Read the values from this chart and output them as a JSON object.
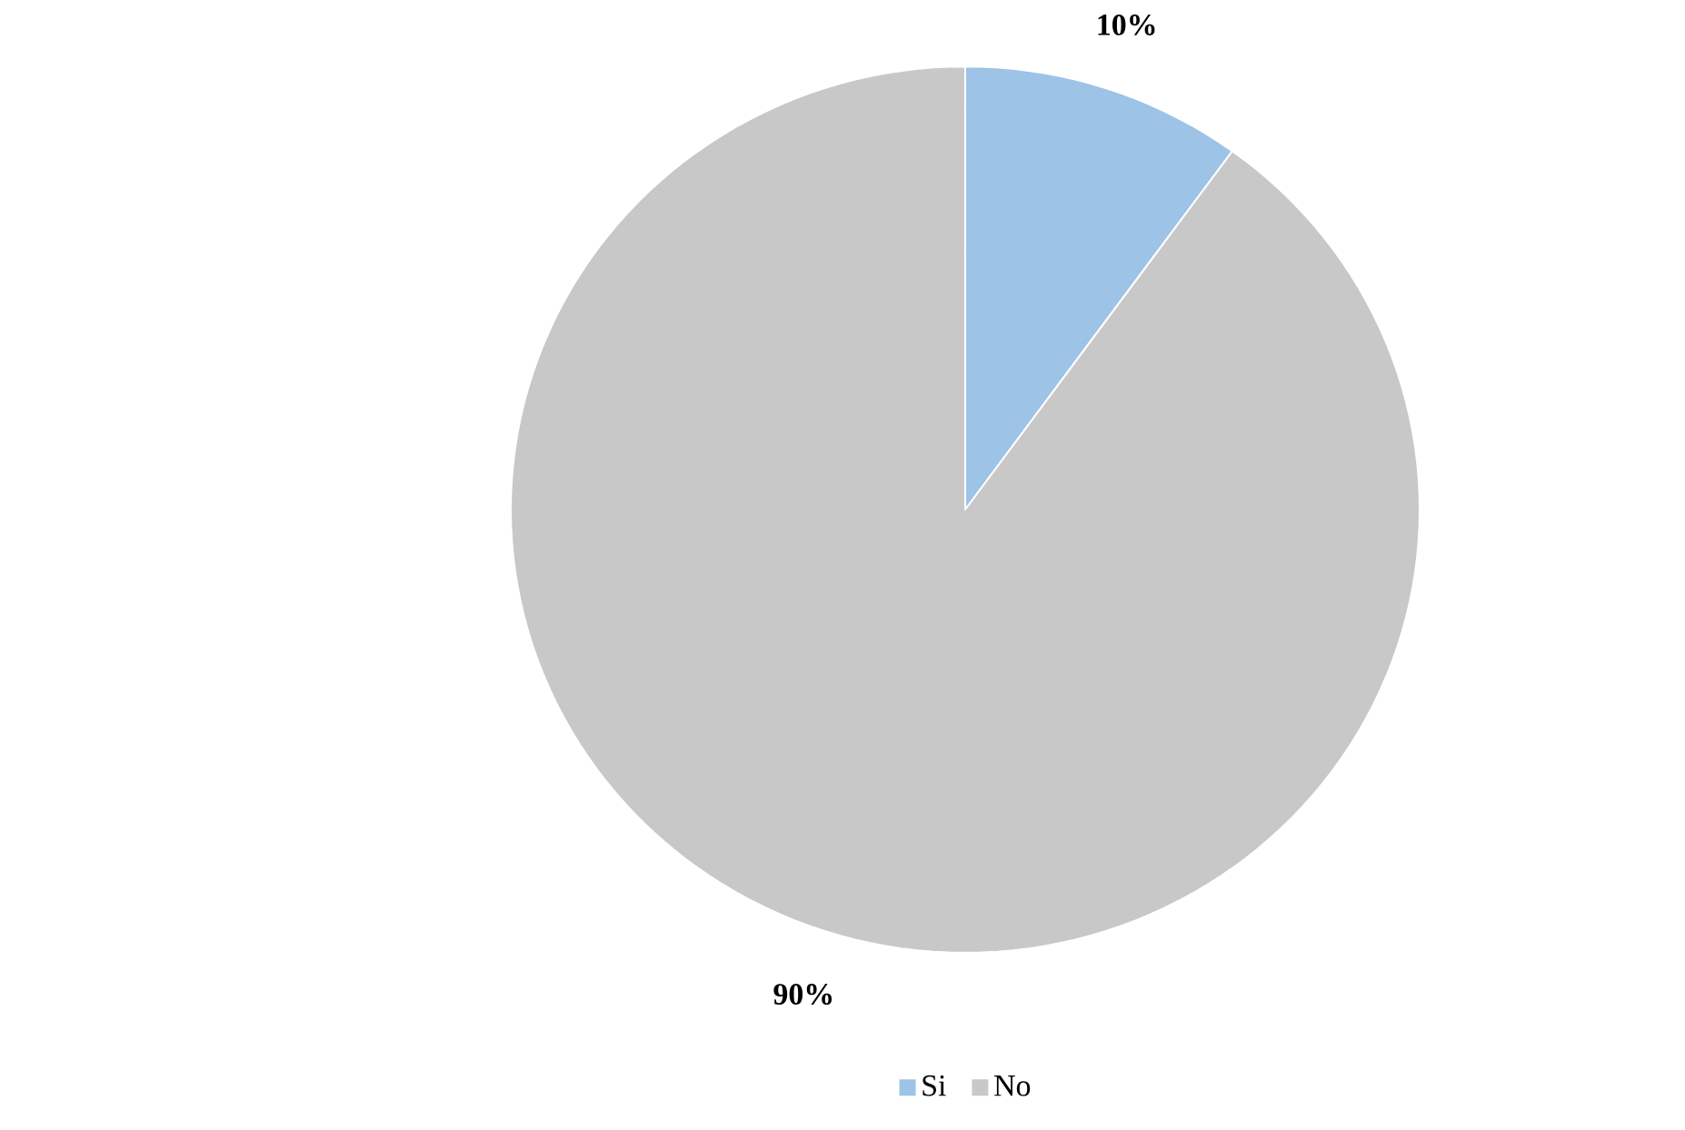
{
  "chart_data": {
    "type": "pie",
    "categories": [
      "Si",
      "No"
    ],
    "values": [
      10,
      90
    ],
    "colors": [
      "#9dc3e6",
      "#c8c8c8"
    ],
    "value_labels": [
      "10%",
      "90%"
    ],
    "legend": "bottom"
  }
}
